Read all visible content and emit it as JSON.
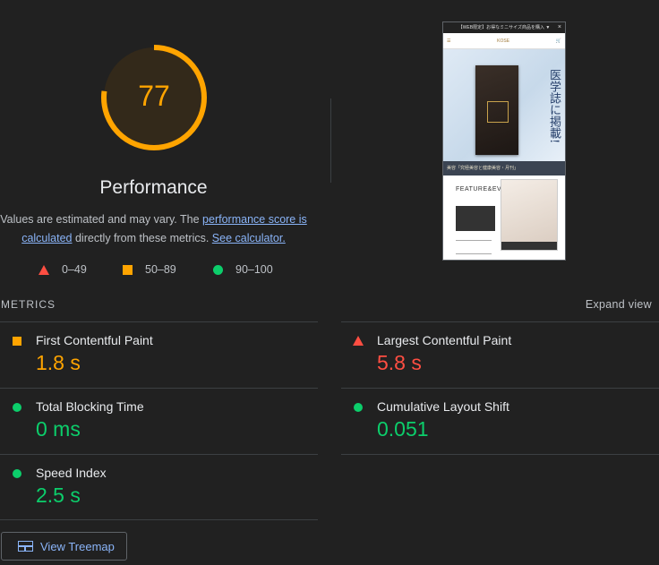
{
  "gauge": {
    "score": "77",
    "fraction": 0.77,
    "title": "Performance"
  },
  "description": {
    "text_before": "Values are estimated and may vary. The ",
    "link_perf_score": "performance score is calculated",
    "text_after": " directly from these metrics. ",
    "link_calculator": "See calculator."
  },
  "legend": {
    "poor": "0–49",
    "average": "50–89",
    "good": "90–100"
  },
  "screenshot": {
    "top_banner": "【WEB限定】お得なミニサイズ商品を購入 ▼",
    "close": "×",
    "site_name": "KOSE",
    "hero_text": "医学誌に掲載!",
    "band_text": "美容「究極美容と健康美容・月刊」",
    "feature_title": "FEATURE&EVENT"
  },
  "metrics": {
    "section_title": "METRICS",
    "expand": "Expand view",
    "fcp": {
      "label": "First Contentful Paint",
      "value": "1.8 s"
    },
    "lcp": {
      "label": "Largest Contentful Paint",
      "value": "5.8 s"
    },
    "tbt": {
      "label": "Total Blocking Time",
      "value": "0 ms"
    },
    "cls": {
      "label": "Cumulative Layout Shift",
      "value": "0.051"
    },
    "si": {
      "label": "Speed Index",
      "value": "2.5 s"
    }
  },
  "treemap_button": "View Treemap",
  "colors": {
    "poor": "#ff4e42",
    "average": "#ffa400",
    "good": "#0cce6b",
    "link": "#8ab4f8"
  }
}
